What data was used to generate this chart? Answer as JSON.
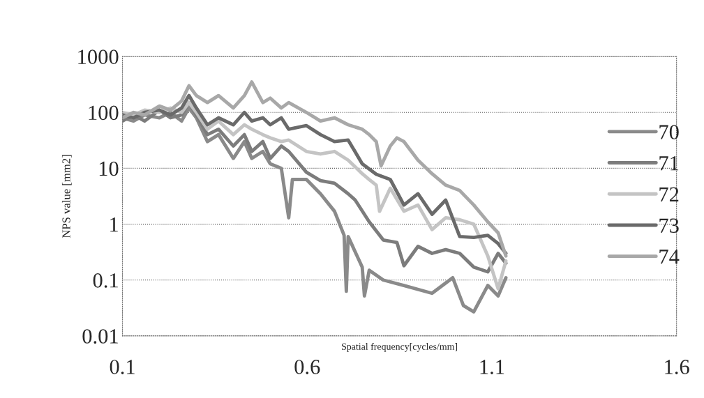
{
  "chart_data": {
    "type": "line",
    "xlabel": "Spatial frequency[cycles/mm]",
    "ylabel": "NPS value [mm2]",
    "log": "y",
    "xlim": [
      0.1,
      1.6
    ],
    "xticks": [
      0.1,
      0.6,
      1.1,
      1.6
    ],
    "ylim": [
      0.01,
      1000
    ],
    "yticks": [
      0.01,
      0.1,
      1,
      10,
      100,
      1000
    ],
    "grid": "y",
    "legend": "right",
    "marker": "none",
    "line_style": "solid",
    "series": [
      {
        "name": "70",
        "color": "#8a8a8a",
        "x": [
          0.1,
          0.13,
          0.16,
          0.2,
          0.23,
          0.26,
          0.28,
          0.3,
          0.33,
          0.36,
          0.4,
          0.43,
          0.45,
          0.48,
          0.5,
          0.53,
          0.55,
          0.56,
          0.598,
          0.636,
          0.674,
          0.7,
          0.706,
          0.711,
          0.749,
          0.755,
          0.768,
          0.806,
          0.862,
          0.938,
          0.994,
          1.023,
          1.051,
          1.089,
          1.117,
          1.138
        ],
        "values": [
          80,
          70,
          90,
          80,
          100,
          70,
          120,
          80,
          30,
          40,
          15,
          30,
          15,
          20,
          12,
          10,
          1.3,
          6.3,
          6.3,
          3.5,
          1.7,
          0.63,
          0.063,
          0.6,
          0.17,
          0.052,
          0.15,
          0.1,
          0.08,
          0.058,
          0.11,
          0.035,
          0.027,
          0.08,
          0.052,
          0.11
        ]
      },
      {
        "name": "71",
        "color": "#7c7c7c",
        "x": [
          0.1,
          0.13,
          0.16,
          0.2,
          0.23,
          0.26,
          0.28,
          0.3,
          0.33,
          0.36,
          0.4,
          0.43,
          0.45,
          0.48,
          0.5,
          0.53,
          0.55,
          0.598,
          0.636,
          0.674,
          0.711,
          0.73,
          0.768,
          0.806,
          0.843,
          0.862,
          0.9,
          0.938,
          0.975,
          1.013,
          1.051,
          1.089,
          1.117,
          1.138
        ],
        "values": [
          70,
          90,
          70,
          110,
          80,
          90,
          150,
          90,
          40,
          50,
          25,
          40,
          20,
          30,
          15,
          25,
          20,
          8.5,
          6,
          5.4,
          3.5,
          2.7,
          1.1,
          0.52,
          0.47,
          0.18,
          0.4,
          0.3,
          0.35,
          0.3,
          0.17,
          0.14,
          0.3,
          0.2
        ]
      },
      {
        "name": "72",
        "color": "#c4c4c4",
        "x": [
          0.1,
          0.13,
          0.16,
          0.2,
          0.23,
          0.26,
          0.28,
          0.3,
          0.33,
          0.36,
          0.4,
          0.43,
          0.45,
          0.48,
          0.5,
          0.53,
          0.55,
          0.598,
          0.636,
          0.674,
          0.711,
          0.749,
          0.768,
          0.787,
          0.796,
          0.825,
          0.862,
          0.9,
          0.938,
          0.975,
          1.013,
          1.051,
          1.089,
          1.117,
          1.138
        ],
        "values": [
          100,
          90,
          110,
          100,
          120,
          100,
          150,
          100,
          50,
          70,
          40,
          60,
          50,
          40,
          35,
          30,
          32,
          20,
          18,
          20,
          14,
          8,
          6.3,
          5,
          1.7,
          4.4,
          1.7,
          2.2,
          0.8,
          1.3,
          1.2,
          1.0,
          0.27,
          0.07,
          0.22
        ]
      },
      {
        "name": "73",
        "color": "#6a6a6a",
        "x": [
          0.1,
          0.13,
          0.16,
          0.2,
          0.23,
          0.26,
          0.28,
          0.3,
          0.33,
          0.36,
          0.4,
          0.43,
          0.45,
          0.48,
          0.5,
          0.53,
          0.55,
          0.598,
          0.636,
          0.674,
          0.711,
          0.749,
          0.787,
          0.825,
          0.862,
          0.9,
          0.938,
          0.975,
          1.013,
          1.051,
          1.089,
          1.117,
          1.138
        ],
        "values": [
          90,
          80,
          100,
          110,
          90,
          120,
          200,
          120,
          60,
          80,
          60,
          100,
          70,
          80,
          60,
          80,
          50,
          58,
          40,
          30,
          32,
          12,
          7.8,
          6.3,
          2.2,
          3.5,
          1.5,
          2.7,
          0.6,
          0.58,
          0.63,
          0.45,
          0.3
        ]
      },
      {
        "name": "74",
        "color": "#a8a8a8",
        "x": [
          0.1,
          0.13,
          0.16,
          0.2,
          0.23,
          0.26,
          0.28,
          0.3,
          0.33,
          0.36,
          0.4,
          0.43,
          0.45,
          0.48,
          0.5,
          0.53,
          0.55,
          0.598,
          0.636,
          0.674,
          0.711,
          0.749,
          0.768,
          0.787,
          0.8,
          0.825,
          0.843,
          0.862,
          0.9,
          0.938,
          0.975,
          1.013,
          1.051,
          1.089,
          1.117,
          1.138
        ],
        "values": [
          80,
          100,
          90,
          130,
          110,
          160,
          300,
          200,
          150,
          200,
          120,
          200,
          350,
          150,
          180,
          120,
          150,
          100,
          70,
          80,
          60,
          50,
          40,
          30,
          11,
          25,
          35,
          30,
          14,
          8,
          5,
          4,
          2.2,
          1.1,
          0.7,
          0.27
        ]
      }
    ]
  }
}
